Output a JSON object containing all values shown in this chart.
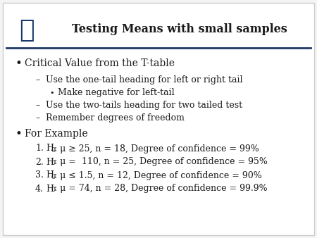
{
  "title": "Testing Means with small samples",
  "bg_color": "#f2f2f2",
  "title_color": "#1a1a1a",
  "line_color": "#1f3864",
  "bullet1": "Critical Value from the T-table",
  "sub1a": "Use the one-tail heading for left or right tail",
  "sub1a_sub": "Make negative for left-tail",
  "sub1b": "Use the two-tails heading for two tailed test",
  "sub1c": "Remember degrees of freedom",
  "bullet2": "For Example",
  "ex1_num": "1.",
  "ex1_h": "H",
  "ex1_sub": "0",
  "ex1_rest": ": μ ≥ 25, n = 18, Degree of confidence = 99%",
  "ex2_num": "2.",
  "ex2_h": "H",
  "ex2_sub": "0",
  "ex2_rest": ": μ =  110, n = 25, Degree of confidence = 95%",
  "ex3_num": "3.",
  "ex3_h": "H",
  "ex3_sub": "0",
  "ex3_rest": ": μ ≤ 1.5, n = 12, Degree of confidence = 90%",
  "ex4_num": "4.",
  "ex4_h": "H",
  "ex4_sub": "0",
  "ex4_rest": ": μ = 74, n = 28, Degree of confidence = 99.9%",
  "text_color": "#1a1a1a",
  "font_size_title": 11.5,
  "font_size_body": 9.0,
  "font_size_bullet1": 10.0
}
